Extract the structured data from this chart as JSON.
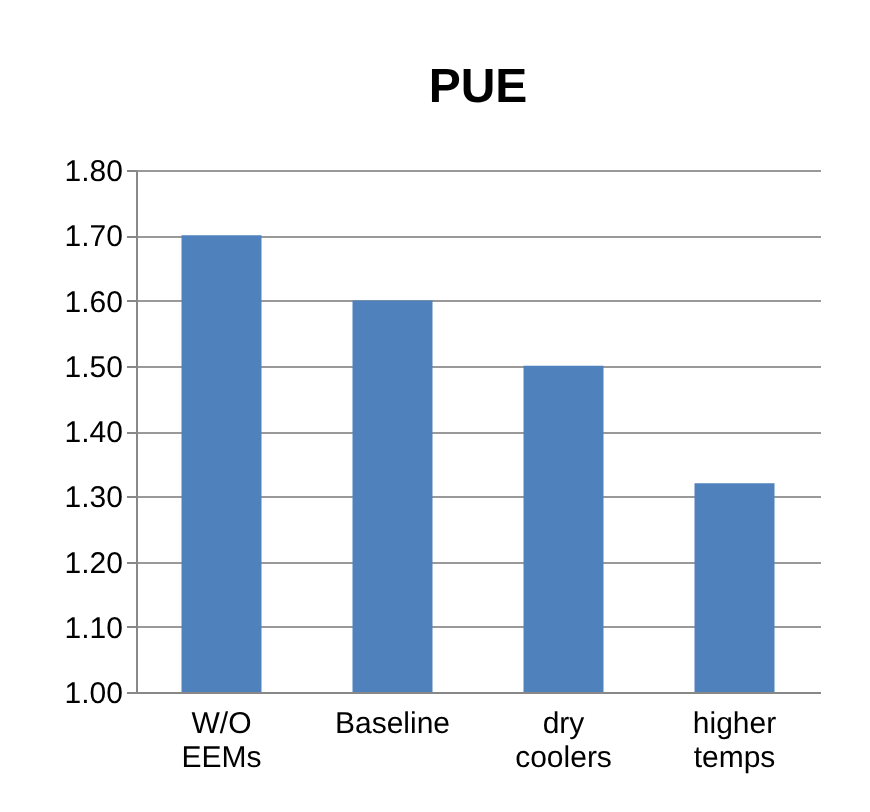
{
  "chart_data": {
    "type": "bar",
    "title": "PUE",
    "categories": [
      "W/O EEMs",
      "Baseline",
      "dry coolers",
      "higher temps"
    ],
    "values": [
      1.7,
      1.6,
      1.5,
      1.32
    ],
    "color": "#4f81bd",
    "ylim": [
      1.0,
      1.8
    ],
    "yticks": [
      {
        "value": 1.0,
        "label": "1.00"
      },
      {
        "value": 1.1,
        "label": "1.10"
      },
      {
        "value": 1.2,
        "label": "1.20"
      },
      {
        "value": 1.3,
        "label": "1.30"
      },
      {
        "value": 1.4,
        "label": "1.40"
      },
      {
        "value": 1.5,
        "label": "1.50"
      },
      {
        "value": 1.6,
        "label": "1.60"
      },
      {
        "value": 1.7,
        "label": "1.70"
      },
      {
        "value": 1.8,
        "label": "1.80"
      }
    ],
    "grid": "y"
  }
}
